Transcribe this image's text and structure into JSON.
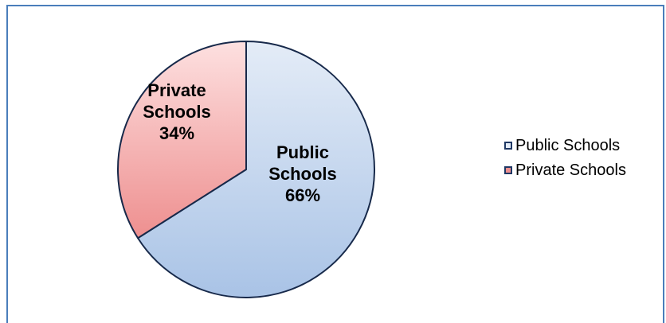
{
  "chart_data": {
    "type": "pie",
    "title": "",
    "categories": [
      "Public Schools",
      "Private Schools"
    ],
    "values": [
      66,
      34
    ],
    "unit": "%",
    "slice_labels": [
      [
        "Public",
        "Schools",
        "66%"
      ],
      [
        "Private",
        "Schools",
        "34%"
      ]
    ],
    "colors": {
      "public_fill_light": "#e4ecf7",
      "public_fill_dark": "#a9c3e6",
      "private_fill_light": "#fde0e0",
      "private_fill_dark": "#ee8f8f",
      "outline": "#17294a",
      "swatch_border": "#1f3864"
    },
    "legend": {
      "placement": "right",
      "entries": [
        "Public Schools",
        "Private Schools"
      ]
    }
  }
}
